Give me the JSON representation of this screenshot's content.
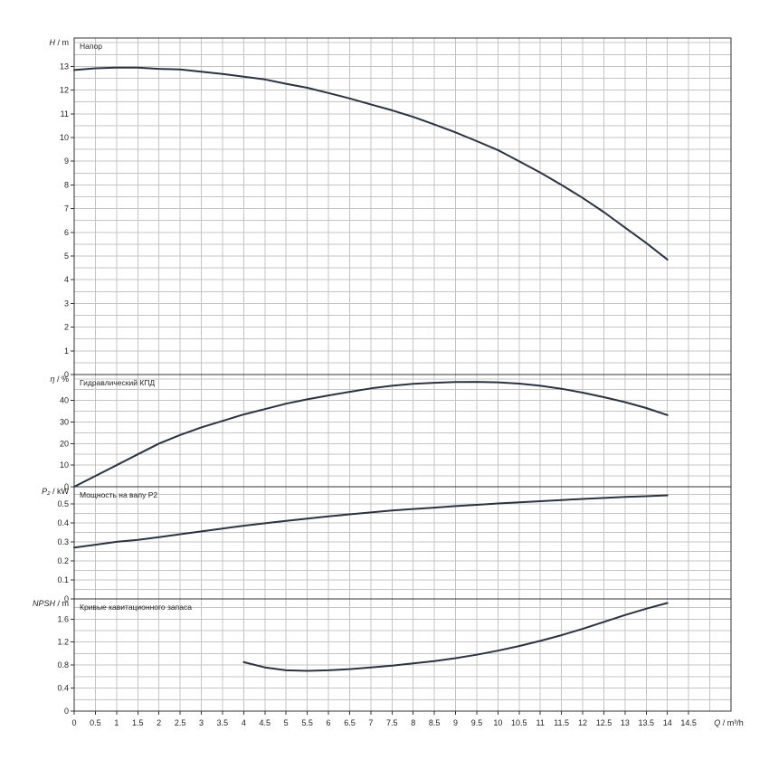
{
  "chart_data": {
    "type": "line",
    "x_axis": {
      "label": "Q",
      "unit": "m³/h",
      "range": [
        0,
        15.5
      ],
      "ticks": [
        "0",
        "0.5",
        "1",
        "1.5",
        "2",
        "2.5",
        "3",
        "3.5",
        "4",
        "4.5",
        "5",
        "5.5",
        "6",
        "6.5",
        "7",
        "7.5",
        "8",
        "8.5",
        "9",
        "9.5",
        "10",
        "10.5",
        "11",
        "11.5",
        "12",
        "12.5",
        "13",
        "13.5",
        "14",
        "14.5"
      ]
    },
    "panels": [
      {
        "id": "head",
        "title": "Напор",
        "y_label": "H",
        "y_unit": "m",
        "ylim": [
          0,
          14.2
        ],
        "y_ticks": [
          "0",
          "1",
          "2",
          "3",
          "4",
          "5",
          "6",
          "7",
          "8",
          "9",
          "10",
          "11",
          "12",
          "13"
        ],
        "series": [
          {
            "x": [
              0,
              0.5,
              1,
              1.5,
              2,
              2.5,
              3,
              3.5,
              4,
              4.5,
              5,
              5.5,
              6,
              6.5,
              7,
              7.5,
              8,
              8.5,
              9,
              9.5,
              10,
              10.5,
              11,
              11.5,
              12,
              12.5,
              13,
              13.5,
              14
            ],
            "y": [
              12.85,
              12.92,
              12.95,
              12.95,
              12.9,
              12.87,
              12.78,
              12.68,
              12.57,
              12.45,
              12.27,
              12.1,
              11.88,
              11.65,
              11.4,
              11.15,
              10.87,
              10.55,
              10.22,
              9.85,
              9.47,
              9.0,
              8.52,
              8.0,
              7.45,
              6.85,
              6.2,
              5.55,
              4.85
            ]
          }
        ]
      },
      {
        "id": "efficiency",
        "title": "Гидравлический КПД",
        "y_label": "η",
        "y_unit": "%",
        "ylim": [
          0,
          52
        ],
        "y_ticks": [
          "0",
          "10",
          "20",
          "30",
          "40"
        ],
        "series": [
          {
            "x": [
              0,
              0.5,
              1,
              1.5,
              2,
              2.5,
              3,
              3.5,
              4,
              4.5,
              5,
              5.5,
              6,
              6.5,
              7,
              7.5,
              8,
              8.5,
              9,
              9.5,
              10,
              10.5,
              11,
              11.5,
              12,
              12.5,
              13,
              13.5,
              14
            ],
            "y": [
              0,
              5,
              10,
              15,
              20,
              24,
              27.5,
              30.5,
              33.5,
              36,
              38.5,
              40.5,
              42.3,
              44,
              45.6,
              46.8,
              47.7,
              48.2,
              48.5,
              48.6,
              48.4,
              47.8,
              46.8,
              45.4,
              43.6,
              41.5,
              39.2,
              36.5,
              33.2
            ]
          }
        ]
      },
      {
        "id": "power",
        "title": "Мощность на валу P2",
        "y_label": "P₂",
        "y_unit": "kW",
        "ylim": [
          0,
          0.59
        ],
        "y_ticks": [
          "0",
          "0.1",
          "0.2",
          "0.3",
          "0.4",
          "0.5"
        ],
        "series": [
          {
            "x": [
              0,
              0.5,
              1,
              1.5,
              2,
              2.5,
              3,
              3.5,
              4,
              4.5,
              5,
              5.5,
              6,
              6.5,
              7,
              7.5,
              8,
              8.5,
              9,
              9.5,
              10,
              10.5,
              11,
              11.5,
              12,
              12.5,
              13,
              13.5,
              14
            ],
            "y": [
              0.27,
              0.285,
              0.3,
              0.31,
              0.325,
              0.34,
              0.355,
              0.37,
              0.385,
              0.398,
              0.41,
              0.422,
              0.434,
              0.445,
              0.455,
              0.465,
              0.473,
              0.48,
              0.488,
              0.495,
              0.502,
              0.508,
              0.514,
              0.52,
              0.526,
              0.531,
              0.536,
              0.54,
              0.545
            ]
          }
        ]
      },
      {
        "id": "npsh",
        "title": "Кривые кавитационного запаса",
        "y_label": "NPSH",
        "y_unit": "m",
        "ylim": [
          0,
          1.95
        ],
        "y_ticks": [
          "0",
          "0.4",
          "0.8",
          "1.2",
          "1.6"
        ],
        "series": [
          {
            "x": [
              4,
              4.5,
              5,
              5.5,
              6,
              6.5,
              7,
              7.5,
              8,
              8.5,
              9,
              9.5,
              10,
              10.5,
              11,
              11.5,
              12,
              12.5,
              13,
              13.5,
              14
            ],
            "y": [
              0.85,
              0.76,
              0.71,
              0.7,
              0.71,
              0.73,
              0.76,
              0.79,
              0.83,
              0.87,
              0.92,
              0.98,
              1.05,
              1.13,
              1.22,
              1.32,
              1.43,
              1.55,
              1.67,
              1.78,
              1.88
            ]
          }
        ]
      }
    ],
    "grid": true,
    "colors": {
      "curve": "#2a3342",
      "grid": "#c4c4c4",
      "frame": "#333333"
    }
  }
}
